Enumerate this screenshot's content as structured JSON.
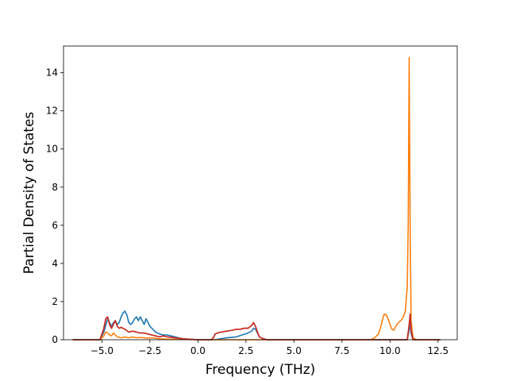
{
  "chart_data": {
    "type": "line",
    "title": "",
    "xlabel": "Frequency (THz)",
    "ylabel": "Partial Density of States",
    "xlim": [
      -7.0,
      13.5
    ],
    "ylim": [
      0,
      15.4
    ],
    "xticks": [
      -5.0,
      -2.5,
      0.0,
      2.5,
      5.0,
      7.5,
      10.0,
      12.5
    ],
    "xtick_labels": [
      "−5.0",
      "−2.5",
      "0.0",
      "2.5",
      "5.0",
      "7.5",
      "10.0",
      "12.5"
    ],
    "yticks": [
      0,
      2,
      4,
      6,
      8,
      10,
      12,
      14
    ],
    "ytick_labels": [
      "0",
      "2",
      "4",
      "6",
      "8",
      "10",
      "12",
      "14"
    ],
    "grid": false,
    "legend": "none",
    "series": [
      {
        "color": "#1f77b4",
        "points": [
          [
            -6.5,
            0
          ],
          [
            -5.1,
            0
          ],
          [
            -4.9,
            0.4
          ],
          [
            -4.7,
            1.1
          ],
          [
            -4.6,
            0.9
          ],
          [
            -4.5,
            0.7
          ],
          [
            -4.4,
            0.9
          ],
          [
            -4.3,
            1.0
          ],
          [
            -4.2,
            0.8
          ],
          [
            -4.1,
            0.9
          ],
          [
            -4.0,
            1.2
          ],
          [
            -3.9,
            1.4
          ],
          [
            -3.8,
            1.5
          ],
          [
            -3.7,
            1.3
          ],
          [
            -3.6,
            0.9
          ],
          [
            -3.5,
            0.8
          ],
          [
            -3.4,
            0.9
          ],
          [
            -3.3,
            1.1
          ],
          [
            -3.2,
            1.2
          ],
          [
            -3.1,
            1.0
          ],
          [
            -3.0,
            1.2
          ],
          [
            -2.9,
            1.0
          ],
          [
            -2.8,
            0.8
          ],
          [
            -2.7,
            1.1
          ],
          [
            -2.6,
            0.9
          ],
          [
            -2.5,
            0.7
          ],
          [
            -2.4,
            0.6
          ],
          [
            -2.2,
            0.4
          ],
          [
            -2.0,
            0.3
          ],
          [
            -1.8,
            0.25
          ],
          [
            -1.6,
            0.25
          ],
          [
            -1.4,
            0.2
          ],
          [
            -1.2,
            0.15
          ],
          [
            -0.8,
            0.05
          ],
          [
            -0.4,
            0.02
          ],
          [
            0.0,
            0.0
          ],
          [
            0.8,
            0.0
          ],
          [
            1.0,
            0.02
          ],
          [
            1.5,
            0.1
          ],
          [
            2.0,
            0.15
          ],
          [
            2.3,
            0.25
          ],
          [
            2.6,
            0.35
          ],
          [
            2.8,
            0.45
          ],
          [
            2.9,
            0.6
          ],
          [
            3.0,
            0.55
          ],
          [
            3.1,
            0.35
          ],
          [
            3.2,
            0.15
          ],
          [
            3.4,
            0.05
          ],
          [
            3.6,
            0.0
          ],
          [
            10.9,
            0.0
          ],
          [
            11.0,
            0.5
          ],
          [
            11.05,
            1.0
          ],
          [
            11.1,
            0.3
          ],
          [
            11.2,
            0.0
          ],
          [
            12.6,
            0.0
          ]
        ]
      },
      {
        "color": "#ff7f0e",
        "points": [
          [
            -6.5,
            0
          ],
          [
            -5.1,
            0
          ],
          [
            -4.9,
            0.2
          ],
          [
            -4.8,
            0.4
          ],
          [
            -4.7,
            0.35
          ],
          [
            -4.6,
            0.25
          ],
          [
            -4.5,
            0.2
          ],
          [
            -4.4,
            0.35
          ],
          [
            -4.3,
            0.25
          ],
          [
            -4.2,
            0.15
          ],
          [
            -4.0,
            0.1
          ],
          [
            -3.8,
            0.15
          ],
          [
            -3.6,
            0.1
          ],
          [
            -3.4,
            0.15
          ],
          [
            -3.2,
            0.1
          ],
          [
            -3.0,
            0.12
          ],
          [
            -2.8,
            0.1
          ],
          [
            -2.6,
            0.08
          ],
          [
            -2.4,
            0.1
          ],
          [
            -2.0,
            0.05
          ],
          [
            -1.6,
            0.03
          ],
          [
            -1.0,
            0.02
          ],
          [
            0.0,
            0.0
          ],
          [
            9.0,
            0.0
          ],
          [
            9.2,
            0.1
          ],
          [
            9.4,
            0.3
          ],
          [
            9.5,
            0.6
          ],
          [
            9.6,
            1.0
          ],
          [
            9.7,
            1.35
          ],
          [
            9.8,
            1.3
          ],
          [
            9.9,
            1.1
          ],
          [
            10.0,
            0.8
          ],
          [
            10.1,
            0.55
          ],
          [
            10.2,
            0.5
          ],
          [
            10.3,
            0.7
          ],
          [
            10.4,
            0.85
          ],
          [
            10.5,
            0.95
          ],
          [
            10.6,
            1.05
          ],
          [
            10.7,
            1.2
          ],
          [
            10.8,
            1.5
          ],
          [
            10.9,
            2.8
          ],
          [
            10.95,
            6.0
          ],
          [
            11.0,
            14.8
          ],
          [
            11.05,
            6.0
          ],
          [
            11.1,
            1.0
          ],
          [
            11.2,
            0.1
          ],
          [
            11.4,
            0.0
          ],
          [
            12.6,
            0.0
          ]
        ]
      },
      {
        "color": "#2ca02c",
        "points": [
          [
            -6.5,
            0
          ],
          [
            -5.1,
            0
          ],
          [
            -4.9,
            0.6
          ],
          [
            -4.8,
            1.1
          ],
          [
            -4.7,
            1.2
          ],
          [
            -4.6,
            0.8
          ],
          [
            -4.5,
            0.6
          ],
          [
            -4.4,
            0.8
          ],
          [
            -4.3,
            1.0
          ],
          [
            -4.2,
            0.7
          ],
          [
            -4.1,
            0.6
          ],
          [
            -4.0,
            0.65
          ],
          [
            -3.8,
            0.55
          ],
          [
            -3.6,
            0.4
          ],
          [
            -3.4,
            0.45
          ],
          [
            -3.2,
            0.4
          ],
          [
            -3.0,
            0.35
          ],
          [
            -2.8,
            0.35
          ],
          [
            -2.6,
            0.3
          ],
          [
            -2.4,
            0.25
          ],
          [
            -2.2,
            0.2
          ],
          [
            -2.0,
            0.15
          ],
          [
            -1.8,
            0.2
          ],
          [
            -1.6,
            0.15
          ],
          [
            -1.2,
            0.1
          ],
          [
            -0.8,
            0.05
          ],
          [
            0.0,
            0.0
          ],
          [
            0.7,
            0.0
          ],
          [
            0.8,
            0.1
          ],
          [
            0.9,
            0.3
          ],
          [
            1.0,
            0.35
          ],
          [
            1.2,
            0.4
          ],
          [
            1.5,
            0.45
          ],
          [
            1.8,
            0.5
          ],
          [
            2.0,
            0.55
          ],
          [
            2.2,
            0.55
          ],
          [
            2.4,
            0.6
          ],
          [
            2.6,
            0.6
          ],
          [
            2.8,
            0.75
          ],
          [
            2.9,
            0.9
          ],
          [
            3.0,
            0.7
          ],
          [
            3.1,
            0.4
          ],
          [
            3.2,
            0.15
          ],
          [
            3.4,
            0.05
          ],
          [
            3.6,
            0.0
          ],
          [
            10.9,
            0.0
          ],
          [
            11.0,
            0.8
          ],
          [
            11.05,
            1.35
          ],
          [
            11.1,
            0.5
          ],
          [
            11.2,
            0.0
          ],
          [
            12.6,
            0.0
          ]
        ]
      },
      {
        "color": "#d62728",
        "points": [
          [
            -6.5,
            0
          ],
          [
            -5.1,
            0
          ],
          [
            -4.9,
            0.6
          ],
          [
            -4.8,
            1.1
          ],
          [
            -4.7,
            1.2
          ],
          [
            -4.6,
            0.8
          ],
          [
            -4.5,
            0.6
          ],
          [
            -4.4,
            0.8
          ],
          [
            -4.3,
            1.0
          ],
          [
            -4.2,
            0.7
          ],
          [
            -4.1,
            0.6
          ],
          [
            -4.0,
            0.65
          ],
          [
            -3.8,
            0.55
          ],
          [
            -3.6,
            0.4
          ],
          [
            -3.4,
            0.45
          ],
          [
            -3.2,
            0.4
          ],
          [
            -3.0,
            0.35
          ],
          [
            -2.8,
            0.35
          ],
          [
            -2.6,
            0.3
          ],
          [
            -2.4,
            0.25
          ],
          [
            -2.2,
            0.2
          ],
          [
            -2.0,
            0.15
          ],
          [
            -1.8,
            0.2
          ],
          [
            -1.6,
            0.15
          ],
          [
            -1.2,
            0.1
          ],
          [
            -0.8,
            0.05
          ],
          [
            0.0,
            0.0
          ],
          [
            0.7,
            0.0
          ],
          [
            0.8,
            0.1
          ],
          [
            0.9,
            0.3
          ],
          [
            1.0,
            0.35
          ],
          [
            1.2,
            0.4
          ],
          [
            1.5,
            0.45
          ],
          [
            1.8,
            0.5
          ],
          [
            2.0,
            0.55
          ],
          [
            2.2,
            0.55
          ],
          [
            2.4,
            0.6
          ],
          [
            2.6,
            0.6
          ],
          [
            2.8,
            0.75
          ],
          [
            2.9,
            0.9
          ],
          [
            3.0,
            0.7
          ],
          [
            3.1,
            0.4
          ],
          [
            3.2,
            0.15
          ],
          [
            3.4,
            0.05
          ],
          [
            3.6,
            0.0
          ],
          [
            10.9,
            0.0
          ],
          [
            11.0,
            0.8
          ],
          [
            11.05,
            1.35
          ],
          [
            11.1,
            0.5
          ],
          [
            11.2,
            0.0
          ],
          [
            12.6,
            0.0
          ]
        ]
      }
    ]
  }
}
